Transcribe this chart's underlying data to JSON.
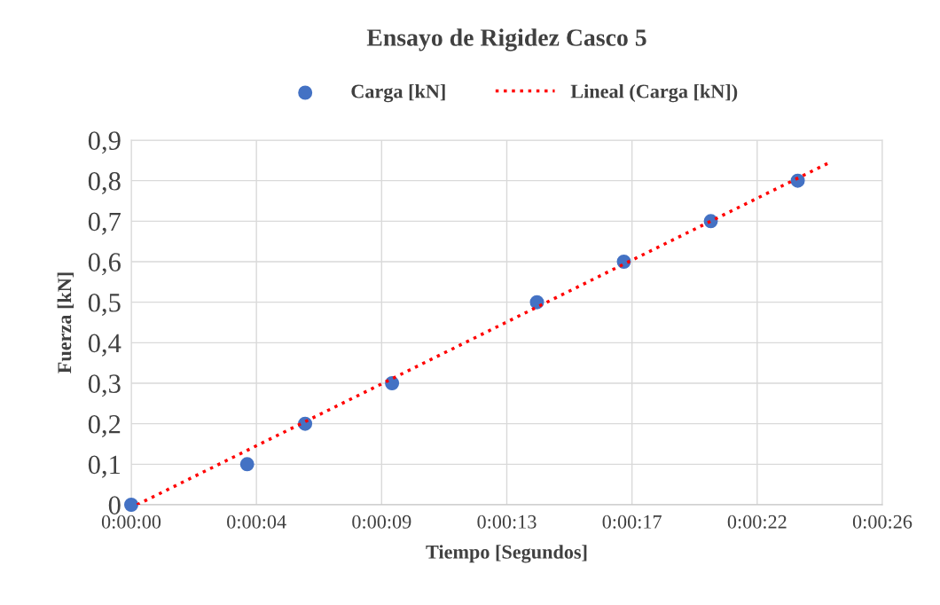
{
  "chart_data": {
    "type": "scatter",
    "title": "Ensayo de Rigidez Casco 5",
    "xlabel": "Tiempo [Segundos]",
    "ylabel": "Fuerza [kN]",
    "series": [
      {
        "name": "Carga [kN]",
        "color": "#4472c4",
        "marker": "circle",
        "x": [
          0,
          4,
          6,
          9,
          14,
          17,
          20,
          23
        ],
        "values": [
          0,
          0.1,
          0.2,
          0.3,
          0.5,
          0.6,
          0.7,
          0.8
        ]
      },
      {
        "name": "Lineal (Carga [kN])",
        "type": "line",
        "color": "#ff0000",
        "line_style": "dotted",
        "marker": "none",
        "x": [
          0.2,
          24.1
        ],
        "values": [
          0,
          0.845
        ]
      }
    ],
    "xlim": [
      0,
      25.92
    ],
    "xticks": [
      {
        "value": 0,
        "label": "0:00:00"
      },
      {
        "value": 4.32,
        "label": "0:00:04"
      },
      {
        "value": 8.64,
        "label": "0:00:09"
      },
      {
        "value": 12.96,
        "label": "0:00:13"
      },
      {
        "value": 17.28,
        "label": "0:00:17"
      },
      {
        "value": 21.6,
        "label": "0:00:22"
      },
      {
        "value": 25.92,
        "label": "0:00:26"
      }
    ],
    "ylim": [
      0,
      0.9
    ],
    "yticks": [
      {
        "value": 0,
        "label": "0"
      },
      {
        "value": 0.1,
        "label": "0,1"
      },
      {
        "value": 0.2,
        "label": "0,2"
      },
      {
        "value": 0.3,
        "label": "0,3"
      },
      {
        "value": 0.4,
        "label": "0,4"
      },
      {
        "value": 0.5,
        "label": "0,5"
      },
      {
        "value": 0.6,
        "label": "0,6"
      },
      {
        "value": 0.7,
        "label": "0,7"
      },
      {
        "value": 0.8,
        "label": "0,8"
      },
      {
        "value": 0.9,
        "label": "0,9"
      }
    ],
    "grid": true,
    "legend": "top"
  }
}
